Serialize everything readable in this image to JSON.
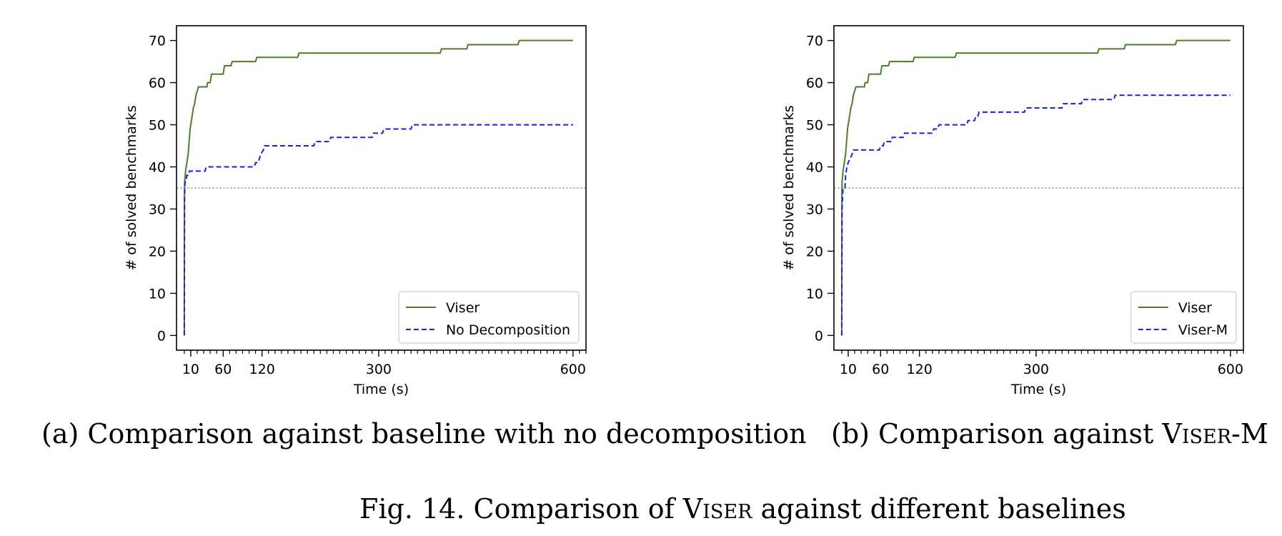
{
  "figure_caption": {
    "prefix": "Fig. 14.  Comparison of ",
    "name": "Viser",
    "suffix": " against different baselines"
  },
  "captions": {
    "a": {
      "text": "(a) Comparison against baseline with no decomposition"
    },
    "b": {
      "prefix": "(b) Comparison against ",
      "name": "Viser",
      "suffix": "-M"
    }
  },
  "chart_data": [
    {
      "type": "line",
      "id": "a",
      "xlabel": "Time (s)",
      "ylabel": "# of solved benchmarks",
      "xlim": [
        -12,
        620
      ],
      "ylim": [
        -3.5,
        73.5
      ],
      "xticks": [
        10,
        60,
        120,
        300,
        600
      ],
      "yticks": [
        0,
        10,
        20,
        30,
        40,
        50,
        60,
        70
      ],
      "minor_xtick_step": 10,
      "reference_line": {
        "y": 35,
        "style": "dotted",
        "color": "#999999"
      },
      "legend_position": "lower-right",
      "series": [
        {
          "name": "Viser",
          "color": "#4d7f2a",
          "style": "solid",
          "points": [
            [
              0,
              0
            ],
            [
              0.3,
              35
            ],
            [
              0.8,
              37
            ],
            [
              1.5,
              38
            ],
            [
              2,
              39
            ],
            [
              3,
              40
            ],
            [
              4,
              41
            ],
            [
              5,
              42
            ],
            [
              6,
              43
            ],
            [
              7,
              45
            ],
            [
              8,
              47
            ],
            [
              9,
              49
            ],
            [
              10,
              50
            ],
            [
              11,
              51
            ],
            [
              12,
              52
            ],
            [
              13,
              53
            ],
            [
              14,
              54
            ],
            [
              16,
              55
            ],
            [
              18,
              57
            ],
            [
              20,
              58
            ],
            [
              22,
              59
            ],
            [
              35,
              59
            ],
            [
              36,
              60
            ],
            [
              40,
              60
            ],
            [
              42,
              62
            ],
            [
              60,
              62
            ],
            [
              62,
              64
            ],
            [
              72,
              64
            ],
            [
              74,
              65
            ],
            [
              110,
              65
            ],
            [
              112,
              66
            ],
            [
              175,
              66
            ],
            [
              177,
              67
            ],
            [
              395,
              67
            ],
            [
              397,
              68
            ],
            [
              436,
              68
            ],
            [
              438,
              69
            ],
            [
              515,
              69
            ],
            [
              517,
              70
            ],
            [
              600,
              70
            ]
          ]
        },
        {
          "name": "No Decomposition",
          "color": "#1f1fe0",
          "style": "dashed",
          "points": [
            [
              0,
              0
            ],
            [
              0.4,
              33
            ],
            [
              1,
              36
            ],
            [
              2,
              37
            ],
            [
              3,
              37
            ],
            [
              4,
              38
            ],
            [
              6,
              38
            ],
            [
              8,
              39
            ],
            [
              32,
              39
            ],
            [
              34,
              40
            ],
            [
              108,
              40
            ],
            [
              110,
              41
            ],
            [
              114,
              41
            ],
            [
              116,
              42
            ],
            [
              118,
              43
            ],
            [
              122,
              44
            ],
            [
              124,
              45
            ],
            [
              200,
              45
            ],
            [
              202,
              46
            ],
            [
              224,
              46
            ],
            [
              226,
              47
            ],
            [
              290,
              47
            ],
            [
              292,
              48
            ],
            [
              306,
              48
            ],
            [
              308,
              49
            ],
            [
              350,
              49
            ],
            [
              352,
              50
            ],
            [
              600,
              50
            ]
          ]
        }
      ]
    },
    {
      "type": "line",
      "id": "b",
      "xlabel": "Time (s)",
      "ylabel": "# of solved benchmarks",
      "xlim": [
        -12,
        620
      ],
      "ylim": [
        -3.5,
        73.5
      ],
      "xticks": [
        10,
        60,
        120,
        300,
        600
      ],
      "yticks": [
        0,
        10,
        20,
        30,
        40,
        50,
        60,
        70
      ],
      "minor_xtick_step": 10,
      "reference_line": {
        "y": 35,
        "style": "dotted",
        "color": "#999999"
      },
      "legend_position": "lower-right",
      "series": [
        {
          "name": "Viser",
          "color": "#4d7f2a",
          "style": "solid",
          "points": [
            [
              0,
              0
            ],
            [
              0.3,
              35
            ],
            [
              0.8,
              37
            ],
            [
              1.5,
              38
            ],
            [
              2,
              39
            ],
            [
              3,
              40
            ],
            [
              4,
              41
            ],
            [
              5,
              42
            ],
            [
              6,
              43
            ],
            [
              7,
              45
            ],
            [
              8,
              47
            ],
            [
              9,
              49
            ],
            [
              10,
              50
            ],
            [
              11,
              51
            ],
            [
              12,
              52
            ],
            [
              13,
              53
            ],
            [
              14,
              54
            ],
            [
              16,
              55
            ],
            [
              18,
              57
            ],
            [
              20,
              58
            ],
            [
              22,
              59
            ],
            [
              35,
              59
            ],
            [
              36,
              60
            ],
            [
              40,
              60
            ],
            [
              42,
              62
            ],
            [
              60,
              62
            ],
            [
              62,
              64
            ],
            [
              72,
              64
            ],
            [
              74,
              65
            ],
            [
              110,
              65
            ],
            [
              112,
              66
            ],
            [
              175,
              66
            ],
            [
              177,
              67
            ],
            [
              395,
              67
            ],
            [
              397,
              68
            ],
            [
              436,
              68
            ],
            [
              438,
              69
            ],
            [
              515,
              69
            ],
            [
              517,
              70
            ],
            [
              600,
              70
            ]
          ]
        },
        {
          "name": "Viser-M",
          "color": "#1f1fe0",
          "style": "dashed",
          "points": [
            [
              0,
              0
            ],
            [
              0.5,
              30
            ],
            [
              2,
              35
            ],
            [
              5,
              35
            ],
            [
              6,
              38
            ],
            [
              8,
              40
            ],
            [
              10,
              41
            ],
            [
              13,
              42
            ],
            [
              16,
              43
            ],
            [
              18,
              44
            ],
            [
              58,
              44
            ],
            [
              60,
              45
            ],
            [
              64,
              45
            ],
            [
              66,
              46
            ],
            [
              76,
              46
            ],
            [
              78,
              47
            ],
            [
              95,
              47
            ],
            [
              97,
              48
            ],
            [
              140,
              48
            ],
            [
              142,
              49
            ],
            [
              148,
              49
            ],
            [
              150,
              50
            ],
            [
              193,
              50
            ],
            [
              195,
              51
            ],
            [
              205,
              51
            ],
            [
              207,
              52
            ],
            [
              210,
              52
            ],
            [
              212,
              53
            ],
            [
              282,
              53
            ],
            [
              284,
              54
            ],
            [
              340,
              54
            ],
            [
              342,
              55
            ],
            [
              370,
              55
            ],
            [
              372,
              56
            ],
            [
              420,
              56
            ],
            [
              422,
              57
            ],
            [
              600,
              57
            ]
          ]
        }
      ]
    }
  ]
}
